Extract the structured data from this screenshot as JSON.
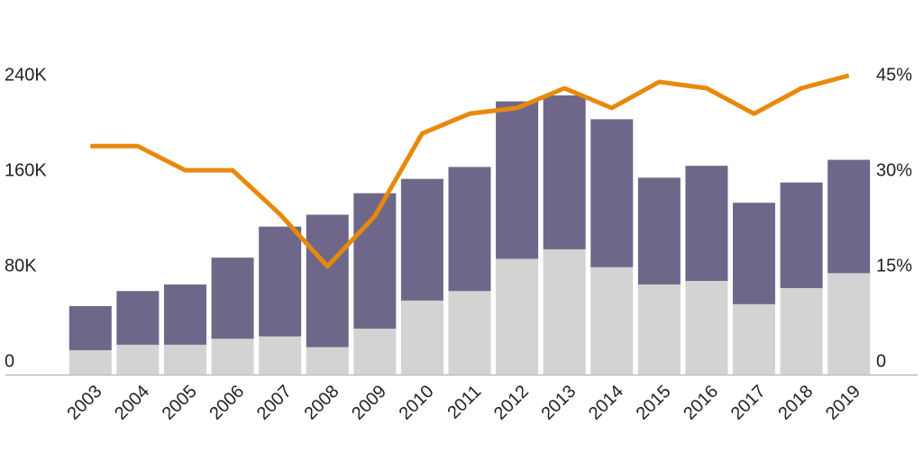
{
  "chart_data": {
    "type": "bar",
    "stacked": true,
    "categories": [
      "2003",
      "2004",
      "2005",
      "2006",
      "2007",
      "2008",
      "2009",
      "2010",
      "2011",
      "2012",
      "2013",
      "2014",
      "2015",
      "2016",
      "2017",
      "2018",
      "2019"
    ],
    "series": [
      {
        "color": "#d3d3d3",
        "values": [
          20400,
          25000,
          25000,
          30000,
          32000,
          23000,
          38500,
          62000,
          70000,
          97000,
          105000,
          90000,
          75500,
          78500,
          59000,
          72500,
          85000
        ]
      },
      {
        "color": "#6e6789",
        "values": [
          37000,
          45000,
          50500,
          68000,
          92000,
          111000,
          113500,
          102000,
          104000,
          132000,
          129000,
          124000,
          89500,
          96500,
          85000,
          88500,
          95000
        ]
      },
      {
        "type": "line",
        "axis": "y2",
        "color": "#e8890c",
        "values": [
          35.9,
          35.9,
          32.1,
          32.1,
          25.2,
          17.0,
          24.9,
          37.9,
          41.0,
          41.9,
          45.0,
          41.9,
          46.0,
          45.0,
          41.0,
          45.0,
          47.0
        ]
      }
    ],
    "ylim": [
      0,
      300000
    ],
    "yticks": [
      0,
      {
        "value": 80000,
        "label": "80K"
      },
      {
        "value": 160000,
        "label": "160K"
      },
      {
        "value": 240000,
        "label": "240K"
      }
    ],
    "y2lim": [
      0,
      56.25
    ],
    "y2ticks": [
      0,
      {
        "value": 15,
        "label": "15%"
      },
      {
        "value": 30,
        "label": "30%"
      },
      {
        "value": 45,
        "label": "45%"
      }
    ],
    "grid": false
  }
}
